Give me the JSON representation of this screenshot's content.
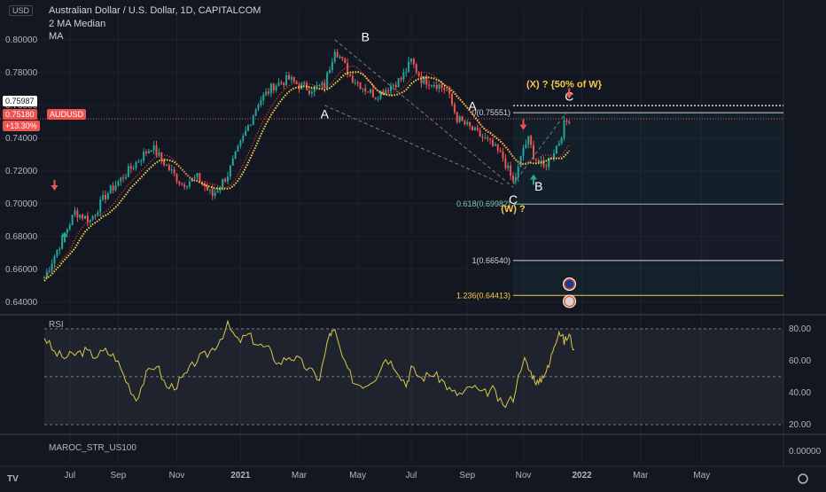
{
  "header": {
    "currency_button": "USD",
    "symbol_title": "Australian Dollar / U.S. Dollar, 1D, CAPITALCOM",
    "indicator_1": "2 MA Median",
    "indicator_2": "MA"
  },
  "price_badges": {
    "crosshair_price": "0.75987",
    "last_price": "0.75180",
    "change": "+13.30%",
    "symbol_tag": "AUDUSD"
  },
  "colors": {
    "background": "#131722",
    "grid": "#1e222d",
    "bull": "#26a69a",
    "bear": "#ef5350",
    "ma_yellow": "#f5d547",
    "ma_red": "#ff4444",
    "fib_gold": "#f7c948",
    "rsi_line": "#d8c84a"
  },
  "chart_data": [
    {
      "type": "candlestick",
      "title": "Australian Dollar / U.S. Dollar, 1D, CAPITALCOM",
      "yticks": [
        "0.80000",
        "0.78000",
        "0.76000",
        "0.74000",
        "0.72000",
        "0.70000",
        "0.68000",
        "0.66000",
        "0.64000"
      ],
      "ylim": [
        0.634,
        0.808
      ],
      "xticks": [
        "Jul",
        "Sep",
        "Nov",
        "2021",
        "Mar",
        "May",
        "Jul",
        "Sep",
        "Nov",
        "2022",
        "Mar",
        "May"
      ],
      "close_path": [
        [
          0,
          0.655
        ],
        [
          3,
          0.675
        ],
        [
          6,
          0.695
        ],
        [
          9,
          0.69
        ],
        [
          12,
          0.705
        ],
        [
          15,
          0.715
        ],
        [
          18,
          0.725
        ],
        [
          21,
          0.735
        ],
        [
          24,
          0.723
        ],
        [
          27,
          0.712
        ],
        [
          30,
          0.716
        ],
        [
          33,
          0.705
        ],
        [
          36,
          0.718
        ],
        [
          39,
          0.74
        ],
        [
          42,
          0.762
        ],
        [
          45,
          0.772
        ],
        [
          48,
          0.776
        ],
        [
          50,
          0.772
        ],
        [
          52,
          0.77
        ],
        [
          55,
          0.772
        ],
        [
          57,
          0.795
        ],
        [
          60,
          0.778
        ],
        [
          63,
          0.77
        ],
        [
          65,
          0.766
        ],
        [
          68,
          0.772
        ],
        [
          70,
          0.776
        ],
        [
          72,
          0.787
        ],
        [
          74,
          0.776
        ],
        [
          77,
          0.773
        ],
        [
          79,
          0.769
        ],
        [
          81,
          0.752
        ],
        [
          84,
          0.745
        ],
        [
          87,
          0.738
        ],
        [
          88,
          0.735
        ],
        [
          90,
          0.728
        ],
        [
          92,
          0.713
        ],
        [
          93,
          0.721
        ],
        [
          94,
          0.734
        ],
        [
          95,
          0.739
        ],
        [
          96,
          0.73
        ],
        [
          97,
          0.725
        ],
        [
          98,
          0.722
        ],
        [
          99,
          0.727
        ],
        [
          101,
          0.738
        ],
        [
          102,
          0.748
        ],
        [
          103,
          0.752
        ]
      ],
      "wave_labels": [
        {
          "text": "B",
          "date_index": 63,
          "price": 0.799
        },
        {
          "text": "A",
          "date_index": 55,
          "price": 0.752
        },
        {
          "text": "A",
          "date_index": 84,
          "price": 0.757
        },
        {
          "text": "C",
          "date_index": 92,
          "price": 0.7
        },
        {
          "text": "(W) ?",
          "date_index": 92,
          "price": 0.695
        },
        {
          "text": "B",
          "date_index": 97,
          "price": 0.708
        },
        {
          "text": "C",
          "date_index": 103,
          "price": 0.763
        },
        {
          "text": "(X) ? {50% of W}",
          "date_index": 102,
          "price": 0.771
        }
      ],
      "fib_levels": [
        {
          "label": "0(0.75551)",
          "price": 0.75551
        },
        {
          "label": "0.618(0.69982)",
          "price": 0.69982
        },
        {
          "label": "1(0.66540)",
          "price": 0.6654
        },
        {
          "label": "1.236(0.64413)",
          "price": 0.64413
        }
      ],
      "reference_lines": [
        {
          "label": "0.75987",
          "price": 0.75987
        },
        {
          "label": "0.75180",
          "price": 0.7518
        }
      ],
      "signals": [
        {
          "kind": "sell",
          "date_index": 2,
          "price": 0.708
        },
        {
          "kind": "buy",
          "date_index": 4,
          "price": 0.683
        },
        {
          "kind": "sell",
          "date_index": 94,
          "price": 0.745
        },
        {
          "kind": "buy",
          "date_index": 96,
          "price": 0.718
        },
        {
          "kind": "sell",
          "date_index": 103,
          "price": 0.764
        }
      ]
    },
    {
      "type": "line",
      "title": "RSI",
      "yticks": [
        "80.00",
        "60.00",
        "40.00",
        "20.00"
      ],
      "ylim": [
        15,
        86
      ],
      "levels": [
        80,
        50,
        20
      ],
      "series": [
        {
          "name": "RSI",
          "points": [
            [
              0,
              75
            ],
            [
              2,
              65
            ],
            [
              4,
              62
            ],
            [
              6,
              64
            ],
            [
              8,
              66
            ],
            [
              10,
              63
            ],
            [
              12,
              66
            ],
            [
              14,
              62
            ],
            [
              16,
              48
            ],
            [
              18,
              36
            ],
            [
              20,
              51
            ],
            [
              22,
              58
            ],
            [
              24,
              43
            ],
            [
              26,
              45
            ],
            [
              28,
              52
            ],
            [
              30,
              61
            ],
            [
              32,
              64
            ],
            [
              34,
              71
            ],
            [
              36,
              82
            ],
            [
              38,
              72
            ],
            [
              40,
              76
            ],
            [
              42,
              70
            ],
            [
              44,
              67
            ],
            [
              46,
              58
            ],
            [
              48,
              63
            ],
            [
              50,
              60
            ],
            [
              52,
              54
            ],
            [
              54,
              49
            ],
            [
              56,
              77
            ],
            [
              57,
              78
            ],
            [
              59,
              57
            ],
            [
              61,
              46
            ],
            [
              63,
              45
            ],
            [
              65,
              50
            ],
            [
              67,
              62
            ],
            [
              69,
              56
            ],
            [
              71,
              45
            ],
            [
              72,
              55
            ],
            [
              74,
              49
            ],
            [
              76,
              52
            ],
            [
              78,
              48
            ],
            [
              80,
              40
            ],
            [
              82,
              39
            ],
            [
              84,
              44
            ],
            [
              86,
              39
            ],
            [
              88,
              42
            ],
            [
              90,
              31
            ],
            [
              92,
              37
            ],
            [
              94,
              62
            ],
            [
              95,
              55
            ],
            [
              96,
              50
            ],
            [
              97,
              45
            ],
            [
              98,
              52
            ],
            [
              99,
              56
            ],
            [
              100,
              70
            ],
            [
              101,
              79
            ],
            [
              102,
              72
            ],
            [
              103,
              76
            ],
            [
              104,
              67
            ]
          ]
        }
      ]
    },
    {
      "type": "line",
      "title": "MAROC_STR_US100",
      "yticks": [
        "0.00000"
      ],
      "series": []
    }
  ]
}
